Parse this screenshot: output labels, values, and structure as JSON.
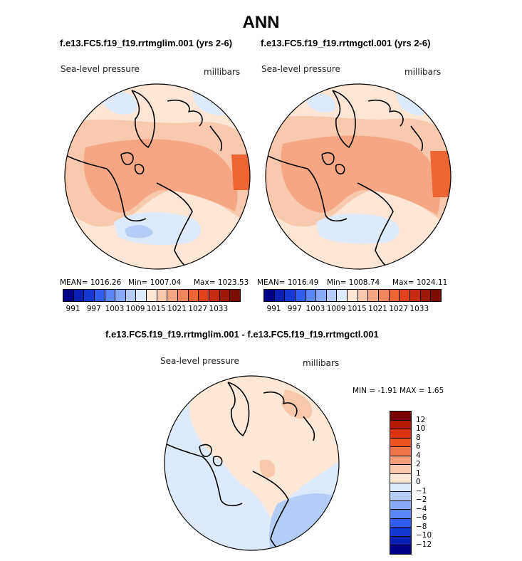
{
  "title": "ANN",
  "panels": [
    {
      "case": "f.e13.FC5.f19_f19.rrtmglim.001 (yrs 2-6)",
      "variable": "Sea-level pressure",
      "units": "millibars",
      "mean_label": "MEAN= 1016.26",
      "min_label": "Min= 1007.04",
      "max_label": "Max= 1023.53"
    },
    {
      "case": "f.e13.FC5.f19_f19.rrtmgctl.001 (yrs 2-6)",
      "variable": "Sea-level pressure",
      "units": "millibars",
      "mean_label": "MEAN= 1016.49",
      "min_label": "Min= 1008.74",
      "max_label": "Max= 1024.11"
    }
  ],
  "abs_colorbar": {
    "labels": [
      "991",
      "997",
      "1003",
      "1009",
      "1015",
      "1021",
      "1027",
      "1033"
    ],
    "colors": [
      "#00008b",
      "#0a1fb4",
      "#1438d2",
      "#2f5ef0",
      "#5a87f6",
      "#86aaf5",
      "#b4ccf6",
      "#ddeafb",
      "#fde6d6",
      "#f9c9ad",
      "#f5a783",
      "#f1855b",
      "#ee6534",
      "#e0421b",
      "#c42b11",
      "#a01806",
      "#7d0b00"
    ]
  },
  "diff": {
    "title": "f.e13.FC5.f19_f19.rrtmglim.001 - f.e13.FC5.f19_f19.rrtmgctl.001",
    "variable": "Sea-level pressure",
    "units": "millibars",
    "minmax_label": "MIN =   -1.91  MAX =    1.65",
    "colorbar": {
      "labels": [
        "12",
        "10",
        "8",
        "6",
        "4",
        "2",
        "1",
        "0",
        "-1",
        "-2",
        "-4",
        "-6",
        "-8",
        "-10",
        "-12"
      ],
      "colors": [
        "#7a0000",
        "#b41a00",
        "#d9340e",
        "#ed5223",
        "#f1744a",
        "#f49d76",
        "#f9c8aa",
        "#fde8d8",
        "#ddeafb",
        "#b4ccf6",
        "#86aaf5",
        "#5a87f6",
        "#2f5ef0",
        "#1438d2",
        "#0a1fb4",
        "#00008b"
      ]
    }
  },
  "map_colors": {
    "p1015": "#fde6d6",
    "p1021": "#f9c9ad",
    "p1027": "#f5a783",
    "p1033": "#ee6534",
    "p1009": "#ddeafb",
    "p1003": "#b4ccf6",
    "d0": "#fde8d8",
    "dneg": "#ddeafb",
    "dneg2": "#b4ccf6",
    "dpos": "#f9c8aa"
  }
}
